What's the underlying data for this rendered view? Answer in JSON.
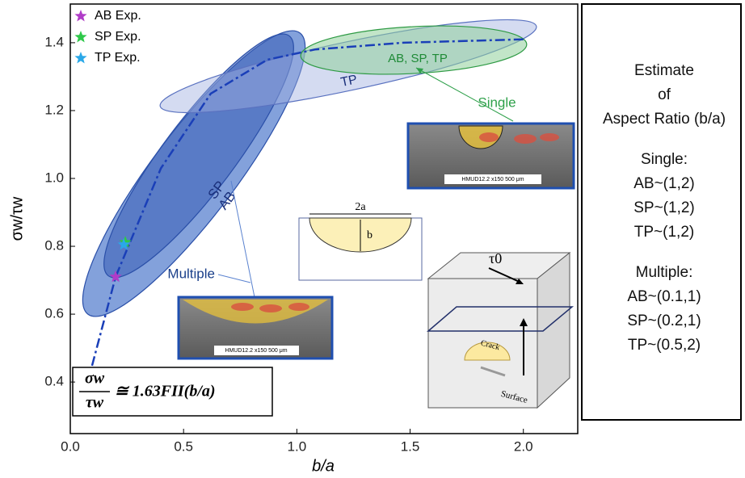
{
  "chart_data": {
    "type": "scatter",
    "xlabel": "b/a",
    "ylabel": "σw/τw",
    "xlim": [
      0,
      2.24
    ],
    "ylim": [
      0.248,
      1.514
    ],
    "xticks": [
      {
        "value": 0,
        "label": "0.0"
      },
      0.5,
      {
        "value": 1,
        "label": "1.0"
      },
      1.5,
      {
        "value": 2,
        "label": "2.0"
      }
    ],
    "yticks": [
      0.4,
      0.6,
      0.8,
      {
        "value": 1,
        "label": "1.0"
      },
      1.2,
      1.4
    ],
    "series": [
      {
        "name": "AB Exp.",
        "color": "#b03cc8",
        "x": [
          0.2
        ],
        "values": [
          0.71
        ]
      },
      {
        "name": "SP Exp.",
        "color": "#2ec84a",
        "x": [
          0.243
        ],
        "values": [
          0.812
        ]
      },
      {
        "name": "TP Exp.",
        "color": "#2aa8e8",
        "x": [
          0.236
        ],
        "values": [
          0.805
        ]
      }
    ],
    "fit_curve": {
      "color": "#1a3fb8",
      "x": [
        0.096,
        0.2,
        0.4,
        0.62,
        0.87,
        1.08,
        1.47,
        2.0
      ],
      "values": [
        0.448,
        0.71,
        1.03,
        1.25,
        1.35,
        1.38,
        1.4,
        1.41
      ]
    },
    "legend_position": "upper left",
    "equation": {
      "numerator": "σw",
      "denominator": "τw",
      "rhs": "≅ 1.63FII(b/a)"
    },
    "annotations": {
      "ab": "AB",
      "sp": "SP",
      "tp": "TP",
      "single_group": "AB, SP, TP",
      "single": "Single",
      "multiple": "Multiple",
      "scale_bar": "HMUD12.2 x150     500 μm",
      "scale_bar_2": "HMUD12.2 x150     500 μm",
      "two_a": "2a",
      "b": "b",
      "tau": "τ0",
      "crack": "Crack",
      "surface": "Surface"
    },
    "side_panel": [
      "Estimate",
      "of",
      "Aspect Ratio (b/a)",
      "Single:",
      "AB~(1,2)",
      "SP~(1,2)",
      "TP~(1,2)",
      "Multiple:",
      "AB~(0.1,1)",
      "SP~(0.2,1)",
      "TP~(0.5,2)"
    ]
  }
}
